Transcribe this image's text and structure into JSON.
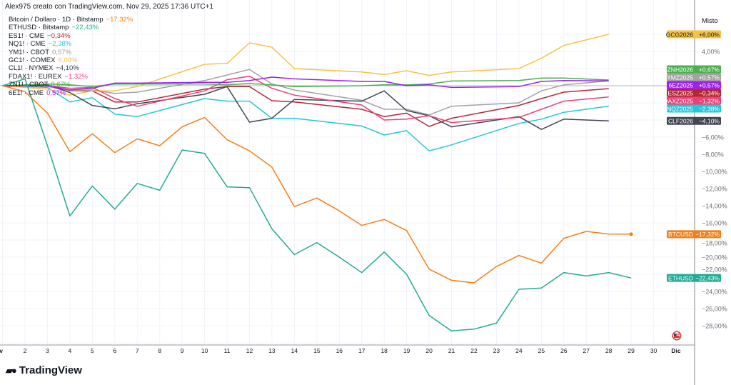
{
  "header": {
    "title": "Alex975 creato con TradingView.com, Nov 29, 2025 17:36 UTC+1"
  },
  "scale_mode": "Misto",
  "brand": "TradingView",
  "chart_data": {
    "type": "line",
    "title": "",
    "xlabel": "",
    "ylabel": "",
    "y_unit": "% change",
    "ylim": [
      -30,
      7
    ],
    "grid": true,
    "legend_position": "top-left",
    "x_tick_labels": [
      "Nov",
      "2",
      "3",
      "4",
      "5",
      "6",
      "7",
      "8",
      "9",
      "10",
      "11",
      "12",
      "13",
      "14",
      "15",
      "16",
      "17",
      "18",
      "19",
      "20",
      "21",
      "22",
      "23",
      "24",
      "25",
      "26",
      "27",
      "28",
      "29",
      "30",
      "Dic"
    ],
    "y_tick_labels": [
      {
        "value": 4,
        "label": "4,00%"
      },
      {
        "value": -6,
        "label": "−6,00%"
      },
      {
        "value": -8,
        "label": "−8,00%"
      },
      {
        "value": -10,
        "label": "−10,00%"
      },
      {
        "value": -12,
        "label": "−12,00%"
      },
      {
        "value": -14,
        "label": "−14,00%"
      },
      {
        "value": -16,
        "label": "−16,00%"
      },
      {
        "value": -18,
        "label": "−18,00%"
      },
      {
        "value": -20,
        "label": "−20,00%"
      },
      {
        "value": -22,
        "label": "−22,00%"
      },
      {
        "value": -24,
        "label": "−24,00%"
      },
      {
        "value": -26,
        "label": "−26,00%"
      },
      {
        "value": -28,
        "label": "−28,00%"
      }
    ],
    "series": [
      {
        "name": "Bitcoin / Dollaro · 1D · Bitstamp",
        "pct": "−17,32%",
        "tag": "BTCUSD",
        "tag_value": "−17,32%",
        "color": "#f57f17",
        "last_dot": true,
        "x": [
          1,
          2,
          3,
          4,
          5,
          6,
          7,
          8,
          9,
          10,
          11,
          12,
          13,
          14,
          15,
          16,
          17,
          18,
          19,
          20,
          21,
          22,
          23,
          24,
          25,
          26,
          27,
          28,
          29
        ],
        "y": [
          0,
          -0.7,
          -3.2,
          -7.7,
          -5.6,
          -7.8,
          -6.2,
          -7.0,
          -4.8,
          -3.7,
          -6.3,
          -7.6,
          -9.5,
          -14.1,
          -13.1,
          -14.6,
          -16.3,
          -15.6,
          -16.9,
          -21.4,
          -22.7,
          -23.0,
          -21.1,
          -19.8,
          -20.7,
          -17.8,
          -17.0,
          -17.3,
          -17.32
        ]
      },
      {
        "name": "ETHUSD · Bitstamp",
        "pct": "−22,43%",
        "tag": "ETHUSD",
        "tag_value": "−22,43%",
        "color": "#22ab94",
        "x": [
          1,
          2,
          3,
          4,
          5,
          6,
          7,
          8,
          9,
          10,
          11,
          12,
          13,
          14,
          15,
          16,
          17,
          18,
          19,
          20,
          21,
          22,
          23,
          24,
          25,
          26,
          27,
          28,
          29
        ],
        "y": [
          0,
          0.8,
          -7.0,
          -15.2,
          -11.7,
          -14.4,
          -11.4,
          -12.2,
          -7.5,
          -7.9,
          -11.8,
          -11.9,
          -16.7,
          -19.7,
          -18.3,
          -20.0,
          -21.8,
          -19.4,
          -22.0,
          -26.8,
          -28.6,
          -28.4,
          -27.7,
          -23.75,
          -23.6,
          -21.8,
          -22.2,
          -21.8,
          -22.43
        ]
      },
      {
        "name": "ES1! · CME",
        "pct": "−0,34%",
        "tag": "ESZ2025",
        "tag_value": "−0,34%",
        "color": "#b22833",
        "x": [
          1,
          3,
          4,
          5,
          6,
          7,
          10,
          11,
          12,
          13,
          14,
          17,
          18,
          19,
          20,
          21,
          24,
          25,
          26,
          28
        ],
        "y": [
          0,
          0,
          -0.6,
          -0.6,
          -1.9,
          -1.9,
          -0.4,
          -0.1,
          -0.1,
          -1.75,
          -1.9,
          -2.75,
          -3.6,
          -3.2,
          -4.75,
          -3.8,
          -2.3,
          -1.5,
          -0.75,
          -0.34
        ]
      },
      {
        "name": "NQ1! · CME",
        "pct": "−2,38%",
        "tag": "NQZ2025",
        "tag_value": "−2,38%",
        "color": "#26c6da",
        "x": [
          1,
          3,
          4,
          5,
          6,
          7,
          10,
          11,
          12,
          13,
          14,
          17,
          18,
          19,
          20,
          21,
          24,
          25,
          26,
          28
        ],
        "y": [
          0,
          -0.2,
          -1.9,
          -1.4,
          -3.3,
          -3.6,
          -1.5,
          -1.8,
          -1.8,
          -3.8,
          -3.8,
          -4.7,
          -5.75,
          -5.25,
          -7.6,
          -6.9,
          -4.4,
          -3.9,
          -3.1,
          -2.38
        ]
      },
      {
        "name": "YM1! · CBOT",
        "pct": "0,57%",
        "tag": "YMZ2025",
        "tag_value": "+0,57%",
        "color": "#a3a3a3",
        "x": [
          1,
          3,
          4,
          5,
          6,
          7,
          10,
          11,
          12,
          13,
          14,
          17,
          18,
          19,
          20,
          21,
          24,
          25,
          26,
          28
        ],
        "y": [
          0,
          -0.1,
          -0.6,
          -0.5,
          -0.9,
          -0.75,
          0.6,
          1.25,
          1.9,
          0.2,
          -0.5,
          -1.7,
          -2.75,
          -2.75,
          -3.4,
          -2.4,
          -2.0,
          -0.6,
          0.1,
          0.57
        ]
      },
      {
        "name": "GC1! · COMEX",
        "pct": "6,00%",
        "tag": "GCG2026",
        "tag_value": "+6,00%",
        "color": "#f7c242",
        "x": [
          1,
          3,
          4,
          5,
          6,
          7,
          10,
          11,
          12,
          13,
          14,
          17,
          18,
          19,
          20,
          21,
          24,
          25,
          26,
          28
        ],
        "y": [
          0,
          -0.4,
          -1.1,
          -0.6,
          -0.6,
          -0.1,
          2.5,
          2.6,
          5.0,
          4.5,
          2.0,
          1.6,
          1.3,
          1.75,
          1.2,
          1.6,
          2.0,
          3.2,
          4.7,
          6.0
        ]
      },
      {
        "name": "CL1! · NYMEX",
        "pct": "−4,10%",
        "tag": "CLF2026",
        "tag_value": "−4,10%",
        "color": "#434651",
        "x": [
          1,
          3,
          4,
          5,
          6,
          7,
          10,
          11,
          12,
          13,
          14,
          17,
          18,
          19,
          20,
          21,
          24,
          25,
          26,
          28
        ],
        "y": [
          0,
          0.1,
          -0.8,
          -2.3,
          -2.7,
          -2.1,
          -1.0,
          -0.1,
          -4.25,
          -3.8,
          -1.6,
          -1.8,
          -0.6,
          -2.9,
          -3.5,
          -4.8,
          -3.6,
          -5.1,
          -3.9,
          -4.1
        ]
      },
      {
        "name": "FDAX1! · EUREX",
        "pct": "−1,32%",
        "tag": "FDAXZ2025",
        "tag_value": "−1,32%",
        "color": "#ec407a",
        "x": [
          1,
          3,
          4,
          5,
          6,
          7,
          10,
          11,
          12,
          13,
          14,
          17,
          18,
          19,
          20,
          21,
          24,
          25,
          26,
          28
        ],
        "y": [
          0,
          0,
          -0.3,
          -0.2,
          -1.5,
          -2.4,
          -0.6,
          0.7,
          1.1,
          -0.3,
          -1.1,
          -2.25,
          -4.0,
          -3.9,
          -3.5,
          -4.3,
          -3.7,
          -2.75,
          -1.8,
          -1.32
        ]
      },
      {
        "name": "ZN1! · CBOT",
        "pct": "0,67%",
        "tag": "ZNH2026",
        "tag_value": "+0,67%",
        "color": "#4caf50",
        "x": [
          1,
          3,
          4,
          5,
          6,
          7,
          10,
          11,
          12,
          13,
          14,
          17,
          18,
          19,
          20,
          21,
          24,
          25,
          26,
          28
        ],
        "y": [
          0,
          0.2,
          0.1,
          -0.1,
          0.2,
          0.2,
          0.2,
          0.1,
          0.25,
          0.1,
          -0.1,
          0,
          0.1,
          0.1,
          0.2,
          0.55,
          0.6,
          0.9,
          0.9,
          0.67
        ]
      },
      {
        "name": "6E1! · CME",
        "pct": "0,57%",
        "tag": "6EZ2025",
        "tag_value": "+0,57%",
        "color": "#a020f0",
        "x": [
          1,
          3,
          4,
          5,
          6,
          7,
          10,
          11,
          12,
          13,
          14,
          17,
          18,
          19,
          20,
          21,
          24,
          25,
          26,
          28
        ],
        "y": [
          0,
          0,
          -0.5,
          -0.3,
          0.3,
          0.3,
          0.4,
          0.4,
          0.6,
          1.0,
          0.8,
          0.5,
          0.5,
          0,
          0.1,
          -0.2,
          -0.1,
          0.5,
          0.6,
          0.57
        ]
      }
    ]
  }
}
